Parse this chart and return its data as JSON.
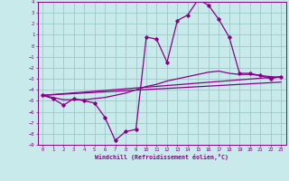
{
  "xlabel": "Windchill (Refroidissement éolien,°C)",
  "background_color": "#c8eaea",
  "grid_color": "#9ec8c8",
  "line_color": "#880088",
  "xlim": [
    -0.5,
    23.5
  ],
  "ylim": [
    -9,
    4
  ],
  "x_ticks": [
    0,
    1,
    2,
    3,
    4,
    5,
    6,
    7,
    8,
    9,
    10,
    11,
    12,
    13,
    14,
    15,
    16,
    17,
    18,
    19,
    20,
    21,
    22,
    23
  ],
  "y_ticks": [
    -9,
    -8,
    -7,
    -6,
    -5,
    -4,
    -3,
    -2,
    -1,
    0,
    1,
    2,
    3,
    4
  ],
  "data_line_x": [
    0,
    1,
    2,
    3,
    4,
    5,
    6,
    7,
    8,
    9,
    10,
    11,
    12,
    13,
    14,
    15,
    16,
    17,
    18,
    19,
    20,
    21,
    22,
    23
  ],
  "data_line_y": [
    -4.5,
    -4.8,
    -5.4,
    -4.8,
    -5.0,
    -5.2,
    -6.5,
    -8.6,
    -7.8,
    -7.6,
    0.8,
    0.6,
    -1.5,
    2.3,
    2.8,
    4.2,
    3.7,
    2.4,
    0.8,
    -2.5,
    -2.5,
    -2.7,
    -3.0,
    -2.8
  ],
  "line1_x": [
    0,
    23
  ],
  "line1_y": [
    -4.5,
    -2.8
  ],
  "line2_x": [
    0,
    23
  ],
  "line2_y": [
    -4.5,
    -3.3
  ],
  "smooth_x": [
    0,
    1,
    2,
    3,
    4,
    5,
    6,
    7,
    8,
    9,
    10,
    11,
    12,
    13,
    14,
    15,
    16,
    17,
    18,
    19,
    20,
    21,
    22,
    23
  ],
  "smooth_y": [
    -4.5,
    -4.7,
    -4.9,
    -4.9,
    -4.9,
    -4.8,
    -4.7,
    -4.5,
    -4.3,
    -4.0,
    -3.7,
    -3.5,
    -3.2,
    -3.0,
    -2.8,
    -2.6,
    -2.4,
    -2.3,
    -2.5,
    -2.6,
    -2.6,
    -2.7,
    -2.8,
    -2.9
  ]
}
